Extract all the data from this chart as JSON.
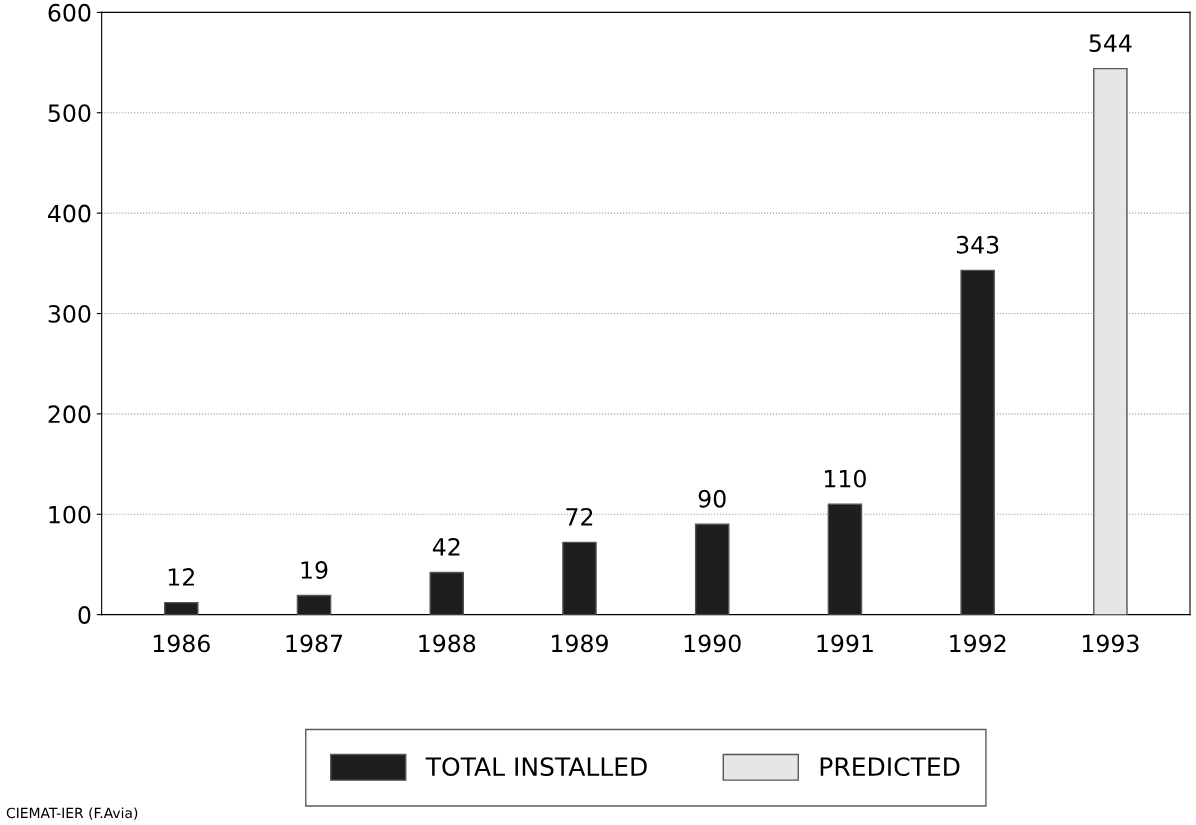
{
  "chart_data": {
    "type": "bar",
    "categories": [
      "1986",
      "1987",
      "1988",
      "1989",
      "1990",
      "1991",
      "1992",
      "1993"
    ],
    "series": [
      {
        "name": "TOTAL INSTALLED",
        "color": "#1e1e1e",
        "values": [
          12,
          19,
          42,
          72,
          90,
          110,
          343,
          null
        ]
      },
      {
        "name": "PREDICTED",
        "color": "#e6e6e6",
        "values": [
          null,
          null,
          null,
          null,
          null,
          null,
          null,
          544
        ]
      }
    ],
    "ylim": [
      0,
      600
    ],
    "yticks": [
      0,
      100,
      200,
      300,
      400,
      500,
      600
    ],
    "grid": "y",
    "legend": "bottom",
    "data_labels": true,
    "annotations": [
      "CIEMAT-IER (F.Avia)"
    ]
  }
}
